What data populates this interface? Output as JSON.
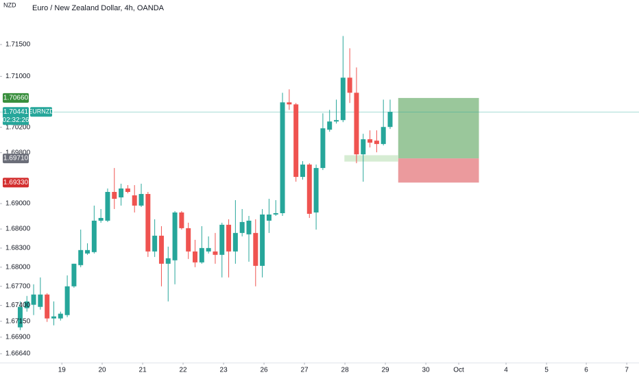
{
  "chart_data": {
    "type": "candlestick",
    "title": "Euro / New Zealand Dollar, 4h, OANDA",
    "currency_label": "NZD",
    "x": [
      0,
      1,
      2,
      3,
      4,
      5,
      6,
      7,
      8,
      9,
      10,
      11,
      12,
      13,
      14,
      15,
      16,
      17,
      18,
      19,
      20,
      21,
      22,
      23,
      24,
      25,
      26,
      27,
      28,
      29,
      30,
      31,
      32,
      33,
      34,
      35,
      36,
      37,
      38,
      39,
      40,
      41,
      42,
      43,
      44,
      45,
      46,
      47,
      48,
      49,
      50,
      51,
      52,
      53,
      54,
      55
    ],
    "open": [
      1.67054,
      1.67355,
      1.67409,
      1.67376,
      1.6757,
      1.67194,
      1.67194,
      1.67247,
      1.67699,
      1.68032,
      1.68215,
      1.68237,
      1.68731,
      1.68731,
      1.69183,
      1.69097,
      1.69237,
      1.69129,
      1.68968,
      1.69151,
      1.68247,
      1.68495,
      1.68054,
      1.68108,
      1.6886,
      1.68613,
      1.68247,
      1.68075,
      1.68247,
      1.68247,
      1.68194,
      1.68667,
      1.68247,
      1.68538,
      1.68516,
      1.68538,
      1.68021,
      1.68731,
      1.68828,
      1.68849,
      1.70591,
      1.70559,
      1.69419,
      1.69613,
      1.6886,
      1.69559,
      1.70161,
      1.7029,
      1.70312,
      1.70979,
      1.70742,
      1.69774,
      1.70011,
      1.69989,
      1.69936,
      1.70204
    ],
    "high": [
      1.67462,
      1.67548,
      1.67731,
      1.67839,
      1.67591,
      1.67462,
      1.67301,
      1.67871,
      1.68054,
      1.68591,
      1.68376,
      1.68968,
      1.68914,
      1.69237,
      1.69559,
      1.69312,
      1.6929,
      1.6929,
      1.69312,
      1.69183,
      1.68753,
      1.68645,
      1.68323,
      1.68882,
      1.68882,
      1.68699,
      1.6843,
      1.68645,
      1.68484,
      1.68538,
      1.68699,
      1.68753,
      1.69054,
      1.68914,
      1.68806,
      1.68753,
      1.68914,
      1.69075,
      1.69054,
      1.70742,
      1.70796,
      1.70581,
      1.69667,
      1.69634,
      1.69613,
      1.70419,
      1.70473,
      1.70634,
      1.71634,
      1.71441,
      1.7114,
      1.70097,
      1.70151,
      1.70151,
      1.70634,
      1.70634
    ],
    "low": [
      1.67011,
      1.67301,
      1.67247,
      1.67333,
      1.6714,
      1.67086,
      1.67161,
      1.67215,
      1.67677,
      1.68,
      1.68194,
      1.68215,
      1.68699,
      1.6871,
      1.68914,
      1.68968,
      1.69161,
      1.6886,
      1.68946,
      1.68161,
      1.68161,
      1.67699,
      1.67462,
      1.67731,
      1.68591,
      1.68129,
      1.68,
      1.68054,
      1.68215,
      1.68054,
      1.67839,
      1.67839,
      1.68054,
      1.68484,
      1.68086,
      1.67699,
      1.67839,
      1.68538,
      1.68806,
      1.68806,
      1.70473,
      1.69344,
      1.69376,
      1.68774,
      1.68591,
      1.69527,
      1.70129,
      1.70258,
      1.7028,
      1.70581,
      1.69634,
      1.69344,
      1.69882,
      1.69806,
      1.69914,
      1.70172
    ],
    "close": [
      1.67376,
      1.67462,
      1.6757,
      1.6757,
      1.67194,
      1.67226,
      1.67269,
      1.67699,
      1.68054,
      1.68269,
      1.68269,
      1.68731,
      1.68774,
      1.69183,
      1.69075,
      1.69237,
      1.69183,
      1.68968,
      1.69151,
      1.68247,
      1.68495,
      1.68054,
      1.6814,
      1.6886,
      1.68613,
      1.68247,
      1.68075,
      1.68301,
      1.68301,
      1.68194,
      1.68667,
      1.68247,
      1.68538,
      1.6871,
      1.68731,
      1.68021,
      1.68828,
      1.68828,
      1.68849,
      1.70591,
      1.70559,
      1.69419,
      1.69613,
      1.68839,
      1.69559,
      1.70183,
      1.7029,
      1.70312,
      1.70979,
      1.70742,
      1.69774,
      1.70011,
      1.69957,
      1.69936,
      1.70204,
      1.70441
    ],
    "up_color": "#26a69a",
    "down_color": "#ef5350",
    "xlim": [
      -3,
      92
    ],
    "ylim": [
      1.665,
      1.722
    ],
    "yticks": [
      {
        "value": 1.715,
        "label": "1.71500"
      },
      {
        "value": 1.71,
        "label": "1.71000"
      },
      {
        "value": 1.702,
        "label": "1.70200"
      },
      {
        "value": 1.698,
        "label": "1.69800"
      },
      {
        "value": 1.69,
        "label": "1.69000"
      },
      {
        "value": 1.686,
        "label": "1.68600"
      },
      {
        "value": 1.683,
        "label": "1.68300"
      },
      {
        "value": 1.68,
        "label": "1.68000"
      },
      {
        "value": 1.677,
        "label": "1.67700"
      },
      {
        "value": 1.674,
        "label": "1.67400"
      },
      {
        "value": 1.6715,
        "label": "1.67150"
      },
      {
        "value": 1.669,
        "label": "1.66900"
      },
      {
        "value": 1.6664,
        "label": "1.66640"
      }
    ],
    "xticks": [
      {
        "value": 6.2,
        "label": "19"
      },
      {
        "value": 12.19,
        "label": "20"
      },
      {
        "value": 18.21,
        "label": "21"
      },
      {
        "value": 24.22,
        "label": "22"
      },
      {
        "value": 30.24,
        "label": "23"
      },
      {
        "value": 36.25,
        "label": "26"
      },
      {
        "value": 42.26,
        "label": "27"
      },
      {
        "value": 48.28,
        "label": "28"
      },
      {
        "value": 54.29,
        "label": "29"
      },
      {
        "value": 60.31,
        "label": "30"
      },
      {
        "value": 65.2,
        "label": "Oct"
      },
      {
        "value": 72.23,
        "label": "4"
      },
      {
        "value": 78.25,
        "label": "5"
      },
      {
        "value": 84.16,
        "label": "6"
      },
      {
        "value": 90.18,
        "label": "7"
      }
    ],
    "position": {
      "x": [
        56.2,
        68.2
      ],
      "entry": 1.6971,
      "target": 1.7066,
      "stop": 1.6933,
      "profit_color": "#9ac79b",
      "loss_color": "#eb9a9d"
    },
    "zone": {
      "x": [
        48.2,
        56.2
      ],
      "y": [
        1.6966,
        1.6976
      ],
      "color": "#d6ecd3"
    },
    "price_labels": [
      {
        "value": 1.7066,
        "label": "1.70660",
        "color": "#388e3c"
      },
      {
        "value": 1.70441,
        "label": "1.70441",
        "color": "#26a69a",
        "symbol": "EURNZD",
        "countdown": "02:32:26"
      },
      {
        "value": 1.6971,
        "label": "1.69710",
        "color": "#6a6d78"
      },
      {
        "value": 1.6933,
        "label": "1.69330",
        "color": "#d32f2f"
      }
    ]
  }
}
